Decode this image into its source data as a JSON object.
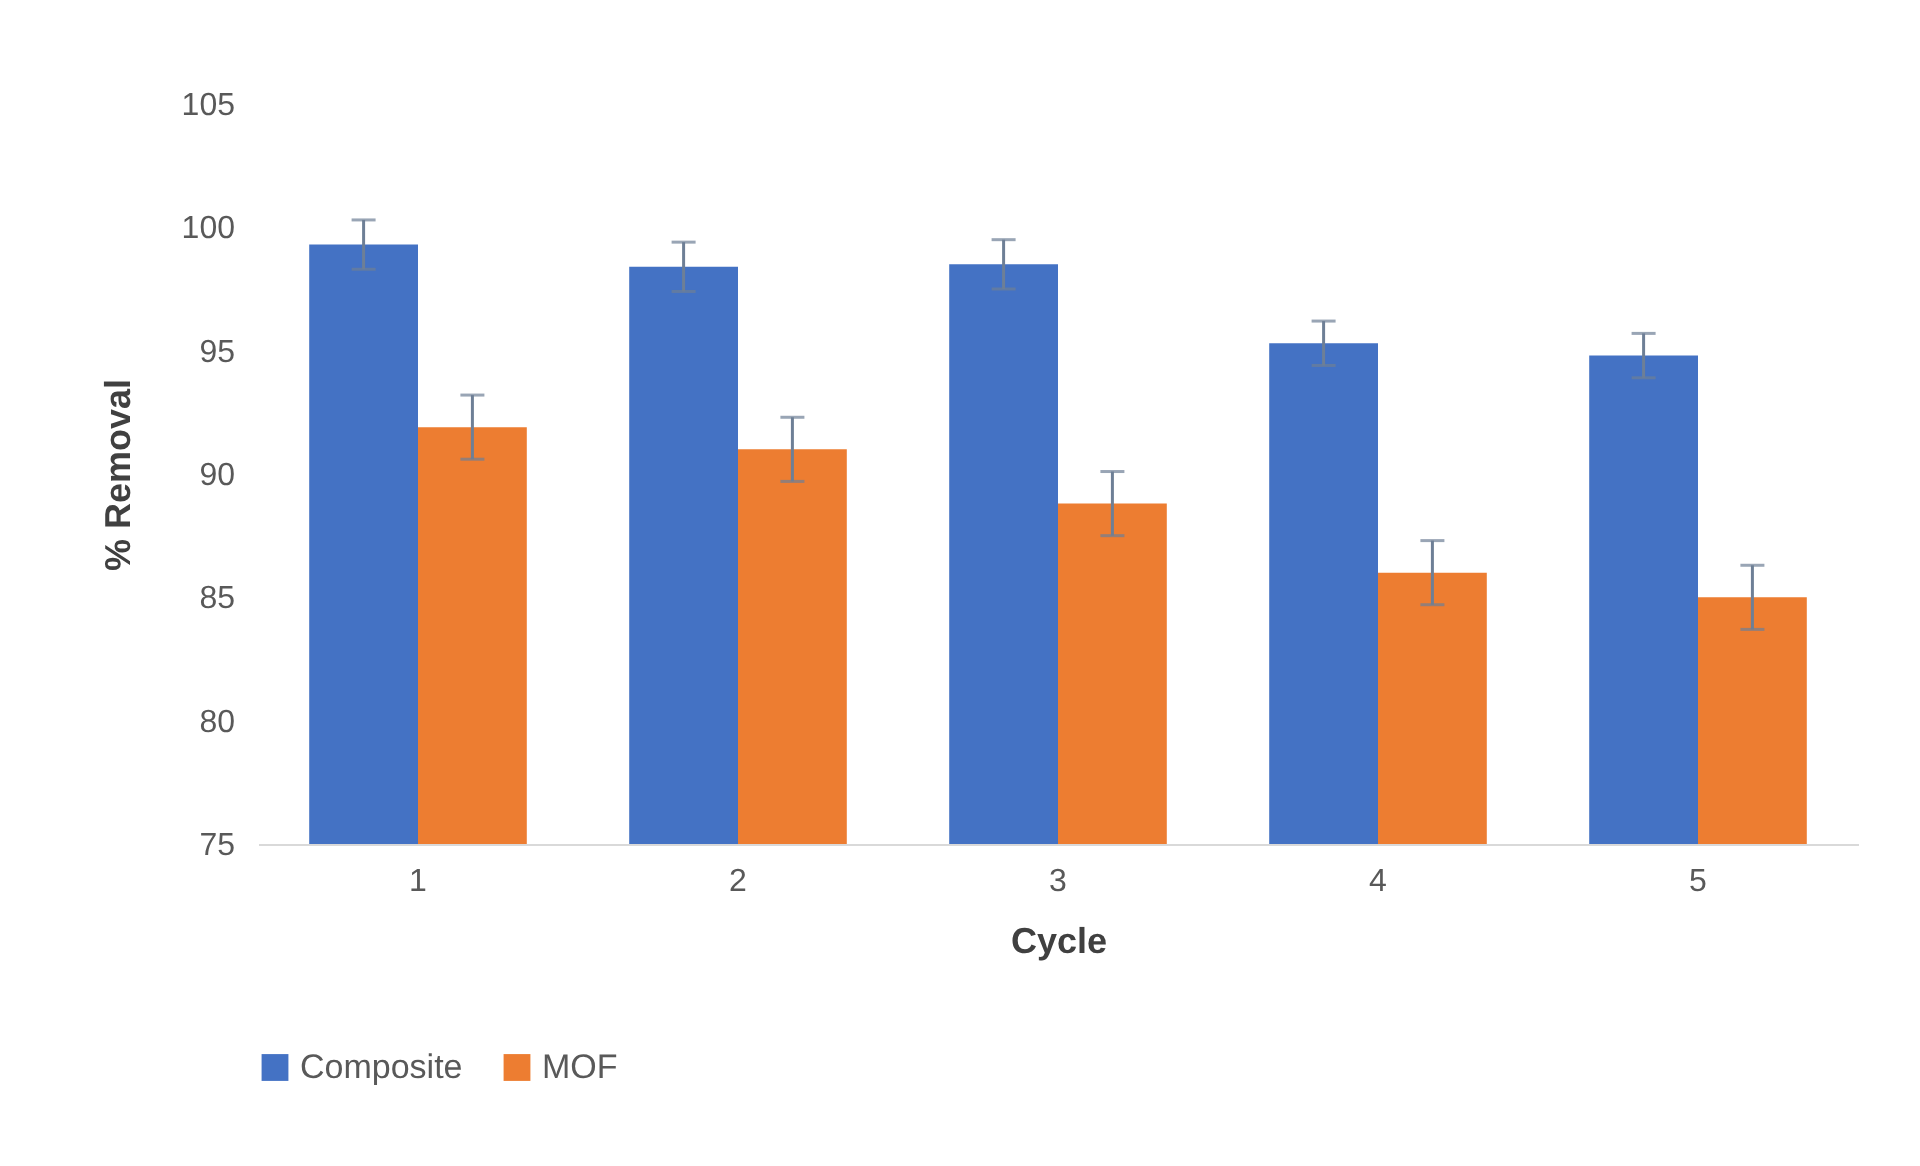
{
  "chart_data": {
    "type": "bar",
    "xlabel": "Cycle",
    "ylabel": "% Removal",
    "categories": [
      "1",
      "2",
      "3",
      "4",
      "5"
    ],
    "series": [
      {
        "name": "Composite",
        "color": "#4472c4",
        "values": [
          99.3,
          98.4,
          98.5,
          95.3,
          94.8
        ],
        "errors": [
          1,
          1,
          1,
          0.9,
          0.9
        ]
      },
      {
        "name": "MOF",
        "color": "#ed7d31",
        "values": [
          91.9,
          91.0,
          88.8,
          86.0,
          85.0
        ],
        "errors": [
          1.3,
          1.3,
          1.3,
          1.3,
          1.3
        ]
      }
    ],
    "ylim": [
      75,
      105
    ],
    "yticks": [
      75,
      80,
      85,
      90,
      95,
      100,
      105
    ],
    "grid": false,
    "legend": "bottom"
  }
}
